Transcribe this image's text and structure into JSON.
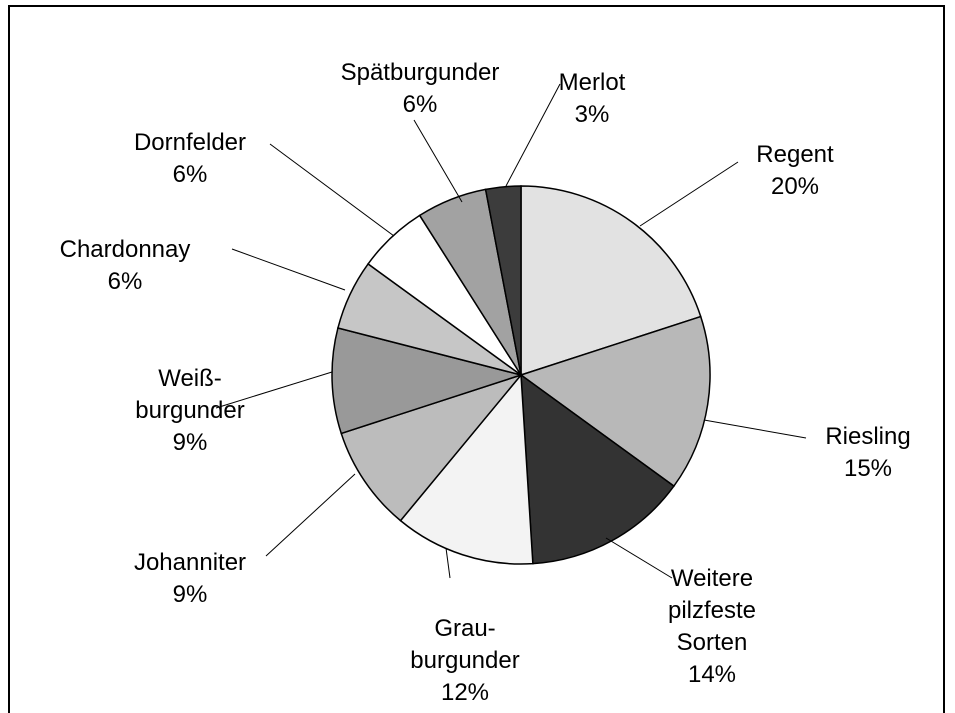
{
  "chart_data": {
    "type": "pie",
    "categories": [
      "Regent",
      "Riesling",
      "Weitere\npilzfeste\nSorten",
      "Grau-\nburgunder",
      "Johanniter",
      "Weiß-\nburgunder",
      "Chardonnay",
      "Dornfelder",
      "Spätburgunder",
      "Merlot"
    ],
    "values": [
      20,
      15,
      14,
      12,
      9,
      9,
      6,
      6,
      6,
      3
    ],
    "value_labels": [
      "20%",
      "15%",
      "14%",
      "12%",
      "9%",
      "9%",
      "6%",
      "6%",
      "6%",
      "3%"
    ],
    "colors": [
      "#e2e2e2",
      "#b8b8b8",
      "#333333",
      "#f3f3f3",
      "#bcbcbc",
      "#999999",
      "#c6c6c6",
      "#ffffff",
      "#a2a2a2",
      "#3c3c3c"
    ]
  }
}
